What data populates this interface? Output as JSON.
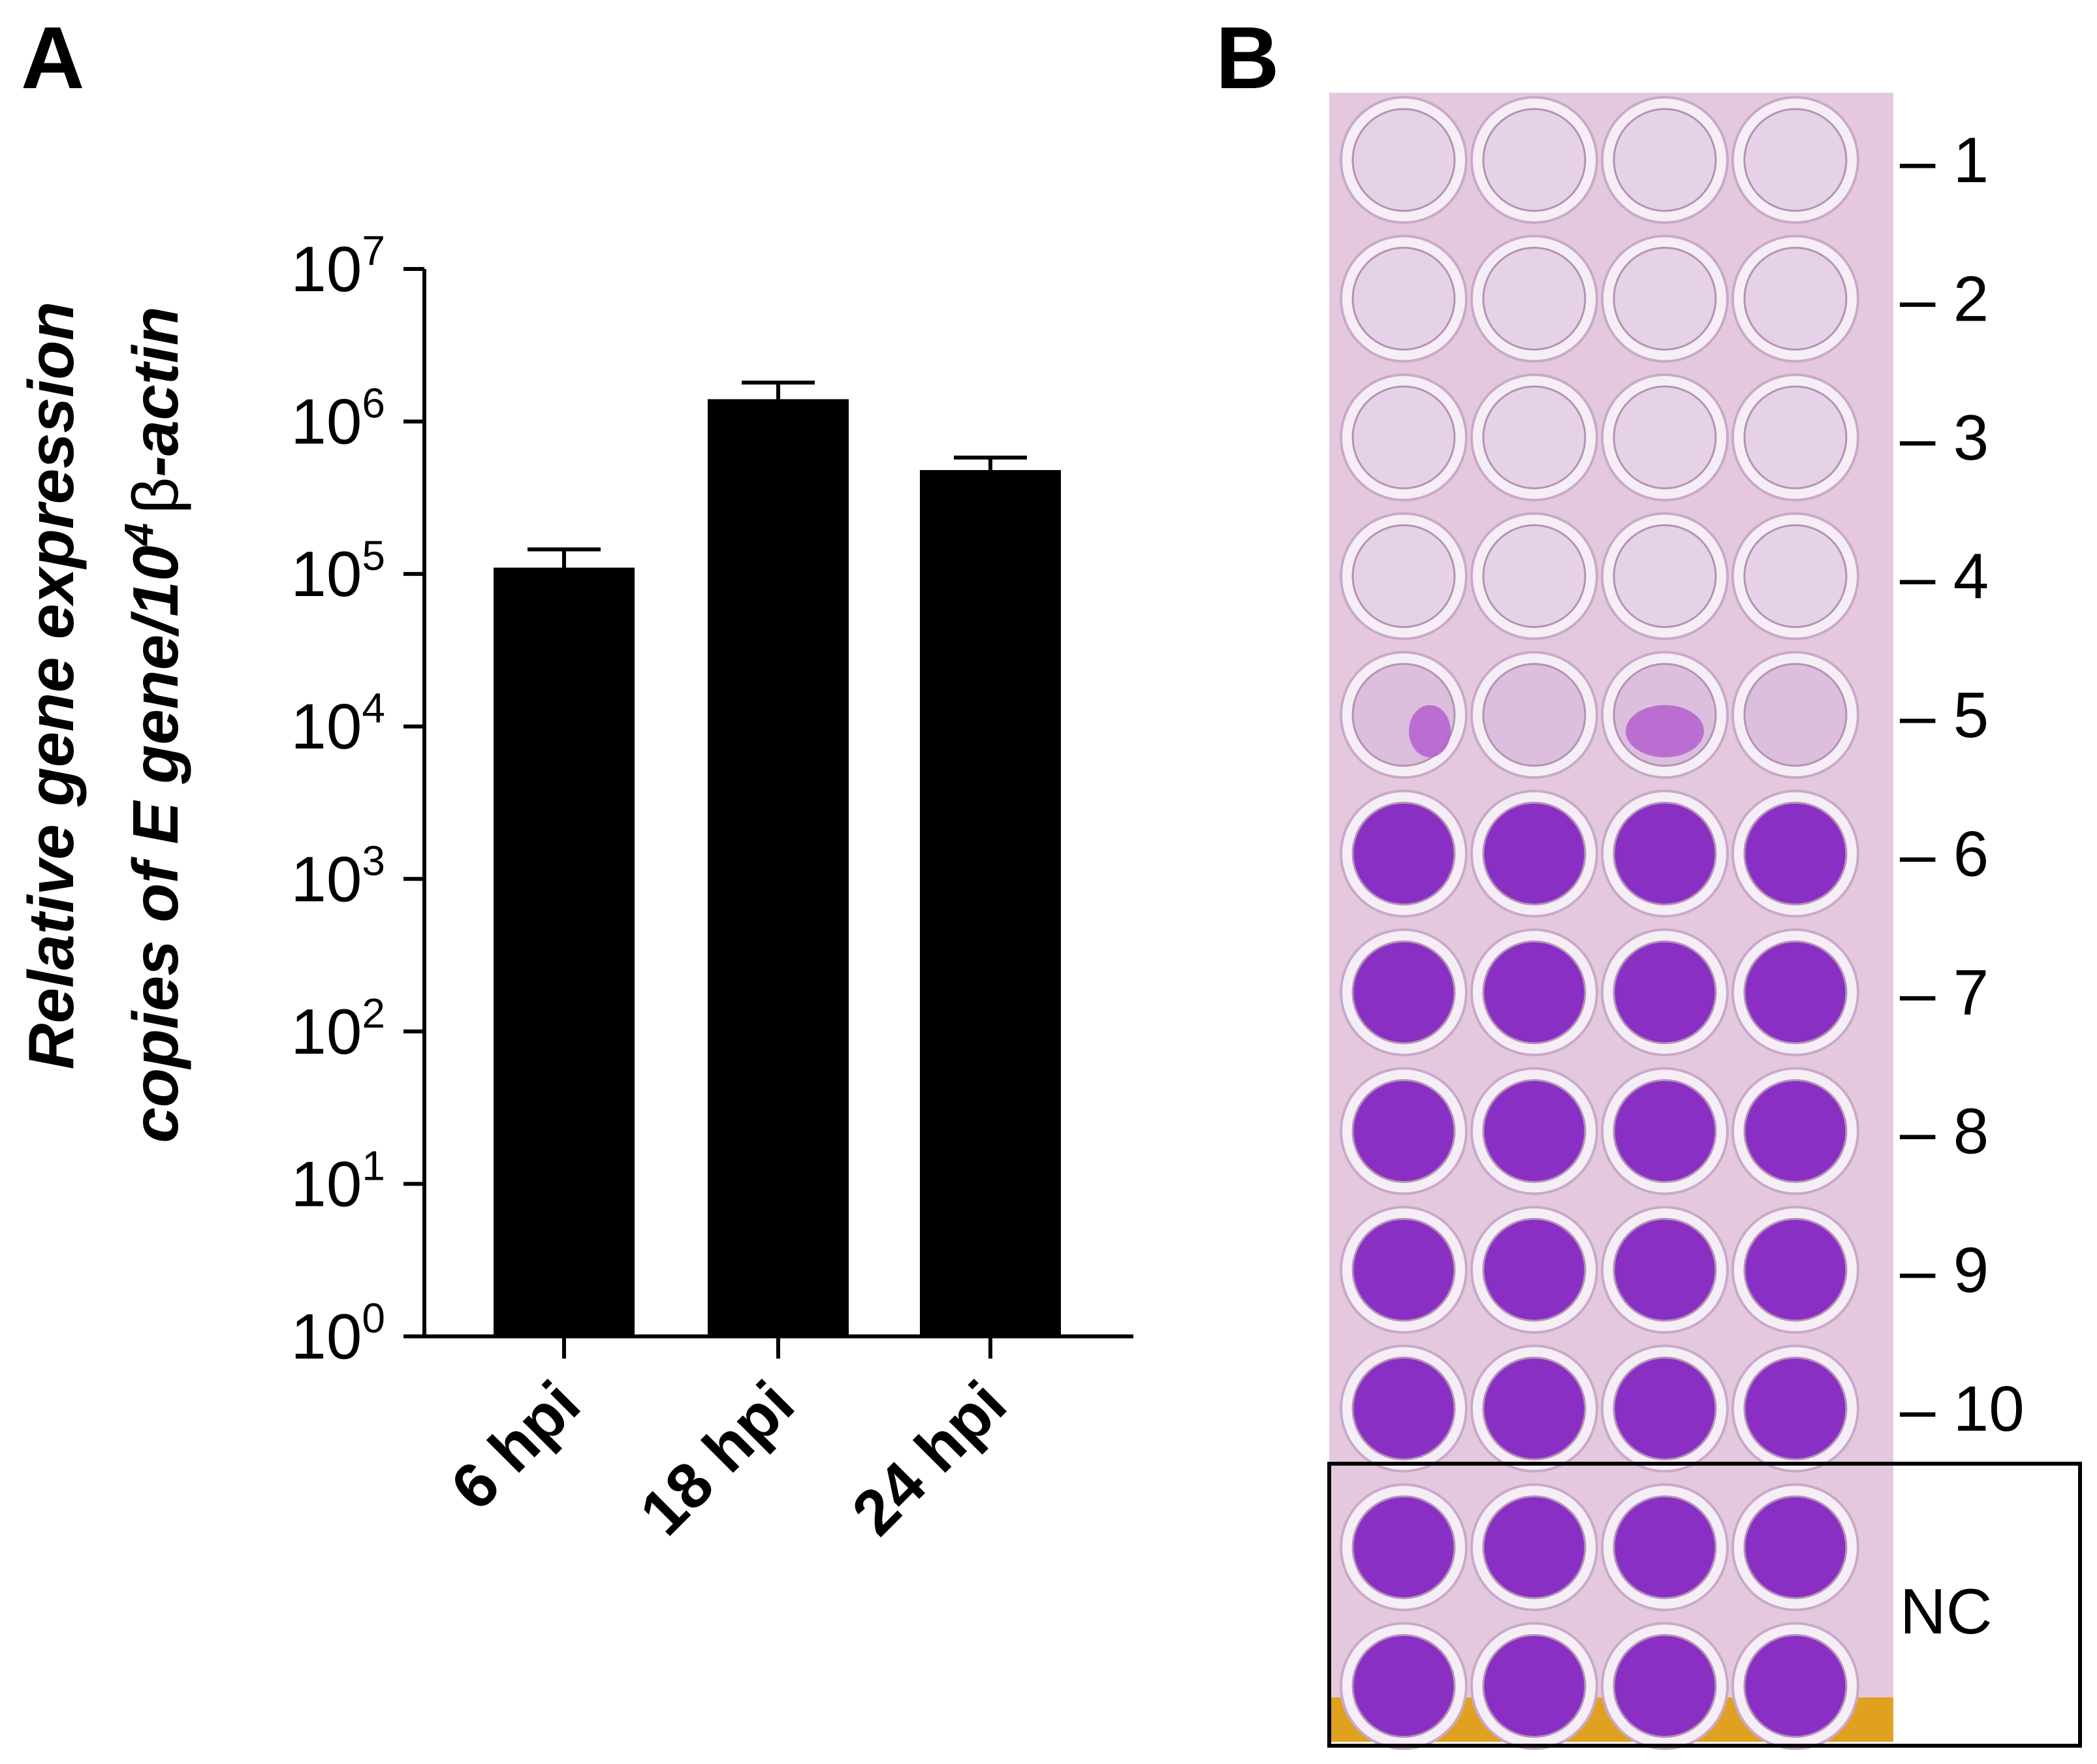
{
  "panel_a": {
    "letter": "A"
  },
  "panel_b": {
    "letter": "B"
  },
  "chart_data": {
    "type": "bar",
    "title": "",
    "ylabel_line1": "Relative gene expression",
    "ylabel_line2": {
      "prefix": "copies of E gene/10",
      "sup": "4",
      "beta": "β",
      "suffix": "-actin"
    },
    "yscale": "log",
    "ylim": [
      1,
      10000000
    ],
    "yticks": [
      {
        "base": "10",
        "exp": "0",
        "value": 1
      },
      {
        "base": "10",
        "exp": "1",
        "value": 10
      },
      {
        "base": "10",
        "exp": "2",
        "value": 100
      },
      {
        "base": "10",
        "exp": "3",
        "value": 1000
      },
      {
        "base": "10",
        "exp": "4",
        "value": 10000
      },
      {
        "base": "10",
        "exp": "5",
        "value": 100000
      },
      {
        "base": "10",
        "exp": "6",
        "value": 1000000
      },
      {
        "base": "10",
        "exp": "7",
        "value": 10000000
      }
    ],
    "categories": [
      "6 hpi",
      "18 hpi",
      "24 hpi"
    ],
    "values": [
      110000,
      1400000,
      480000
    ],
    "error_upper": [
      145000,
      1800000,
      580000
    ],
    "bar_color": "#000000",
    "grid": false,
    "legend": "none"
  },
  "plate": {
    "columns": 4,
    "rows": [
      {
        "label": "– 1",
        "stain": "cleared"
      },
      {
        "label": "– 2",
        "stain": "cleared"
      },
      {
        "label": "– 3",
        "stain": "cleared"
      },
      {
        "label": "– 4",
        "stain": "cleared"
      },
      {
        "label": "– 5",
        "stain": "partial"
      },
      {
        "label": "– 6",
        "stain": "stained"
      },
      {
        "label": "– 7",
        "stain": "stained"
      },
      {
        "label": "– 8",
        "stain": "stained"
      },
      {
        "label": "– 9",
        "stain": "stained"
      },
      {
        "label": "– 10",
        "stain": "stained"
      },
      {
        "label": "",
        "stain": "stained"
      },
      {
        "label": "",
        "stain": "stained"
      }
    ],
    "nc_label": "NC",
    "colors": {
      "plate": "#e4c9de",
      "stained_well": "#8a2fc4",
      "cleared_well": "#e6d2e6",
      "base": "#e0a020"
    }
  }
}
